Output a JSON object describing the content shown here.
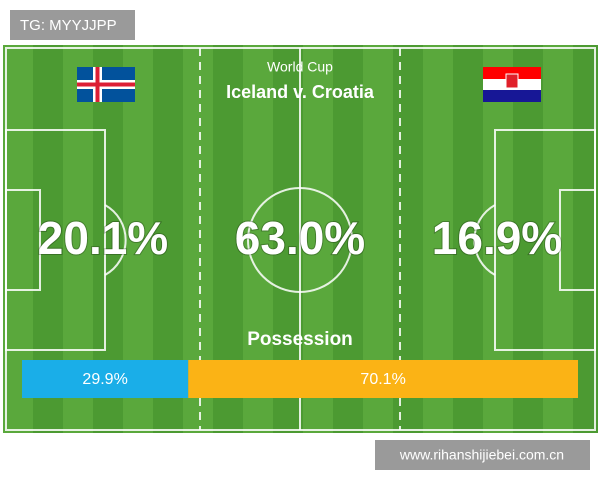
{
  "watermark": "TG: MYYJJPP",
  "header": {
    "subtitle": "World Cup",
    "title": "Iceland v. Croatia"
  },
  "odds": [
    "20.1%",
    "63.0%",
    "16.9%"
  ],
  "possession": {
    "title": "Possession",
    "values": [
      29.9,
      70.1
    ],
    "value_labels": [
      "29.9%",
      "70.1%"
    ],
    "colors": [
      "#1aaee8",
      "#fbb315"
    ]
  },
  "footer": "www.rihanshijiebei.com.cn"
}
